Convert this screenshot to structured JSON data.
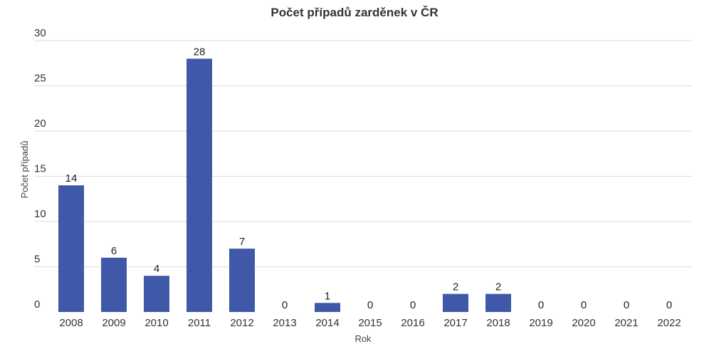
{
  "chart_data": {
    "type": "bar",
    "title": "Počet případů zarděnek v ČR",
    "xlabel": "Rok",
    "ylabel": "Počet případů",
    "categories": [
      "2008",
      "2009",
      "2010",
      "2011",
      "2012",
      "2013",
      "2014",
      "2015",
      "2016",
      "2017",
      "2018",
      "2019",
      "2020",
      "2021",
      "2022"
    ],
    "values": [
      14,
      6,
      4,
      28,
      7,
      0,
      1,
      0,
      0,
      2,
      2,
      0,
      0,
      0,
      0
    ],
    "ylim": [
      0,
      30
    ],
    "yticks": [
      0,
      5,
      10,
      15,
      20,
      25,
      30
    ],
    "grid": true,
    "bar_color": "#3f59a8",
    "grid_color": "#dddddd"
  }
}
